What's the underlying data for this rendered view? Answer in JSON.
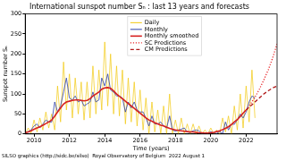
{
  "chart_data": {
    "type": "line",
    "title": "International sunspot number Sₙ : last 13 years and forecasts",
    "x_label": "Time (years)",
    "y_label": "Sunspot number Sₙ",
    "annotation": "SILSO graphics (http://sidc.be/silso)  Royal Observatory of Belgium  2022 August 1",
    "x": [
      2009.5,
      2009.67,
      2009.83,
      2010.0,
      2010.17,
      2010.33,
      2010.5,
      2010.67,
      2010.83,
      2011.0,
      2011.17,
      2011.33,
      2011.5,
      2011.67,
      2011.83,
      2012.0,
      2012.17,
      2012.33,
      2012.5,
      2012.67,
      2012.83,
      2013.0,
      2013.17,
      2013.33,
      2013.5,
      2013.67,
      2013.83,
      2014.0,
      2014.17,
      2014.33,
      2014.5,
      2014.67,
      2014.83,
      2015.0,
      2015.17,
      2015.33,
      2015.5,
      2015.67,
      2015.83,
      2016.0,
      2016.17,
      2016.33,
      2016.5,
      2016.67,
      2016.83,
      2017.0,
      2017.17,
      2017.33,
      2017.5,
      2017.67,
      2017.83,
      2018.0,
      2018.17,
      2018.33,
      2018.5,
      2018.67,
      2018.83,
      2019.0,
      2019.17,
      2019.33,
      2019.5,
      2019.67,
      2019.83,
      2020.0,
      2020.17,
      2020.33,
      2020.5,
      2020.67,
      2020.83,
      2021.0,
      2021.17,
      2021.33,
      2021.5,
      2021.67,
      2021.83,
      2022.0,
      2022.17,
      2022.33,
      2022.5
    ],
    "series": [
      {
        "name": "Daily",
        "color": "#f2c80f",
        "line_style": "solid",
        "values": [
          0,
          15,
          2,
          35,
          5,
          40,
          10,
          55,
          15,
          50,
          10,
          120,
          30,
          180,
          60,
          150,
          40,
          140,
          50,
          130,
          35,
          130,
          40,
          170,
          50,
          160,
          60,
          230,
          70,
          200,
          50,
          170,
          45,
          160,
          25,
          140,
          30,
          130,
          20,
          110,
          10,
          90,
          0,
          80,
          5,
          60,
          0,
          70,
          0,
          100,
          0,
          35,
          0,
          40,
          0,
          25,
          0,
          25,
          0,
          20,
          0,
          10,
          0,
          15,
          0,
          10,
          0,
          40,
          5,
          45,
          0,
          70,
          10,
          100,
          15,
          120,
          30,
          160,
          40
        ]
      },
      {
        "name": "Monthly",
        "color": "#2c3fa8",
        "line_style": "solid",
        "values": [
          4,
          6,
          10,
          20,
          25,
          15,
          25,
          35,
          30,
          30,
          80,
          55,
          70,
          105,
          140,
          90,
          85,
          95,
          80,
          85,
          70,
          75,
          80,
          105,
          80,
          85,
          140,
          120,
          150,
          110,
          105,
          95,
          95,
          90,
          55,
          80,
          65,
          80,
          60,
          55,
          55,
          40,
          20,
          45,
          25,
          25,
          30,
          20,
          15,
          45,
          10,
          7,
          10,
          12,
          15,
          5,
          4,
          8,
          10,
          8,
          1,
          1,
          2,
          6,
          2,
          1,
          6,
          1,
          30,
          10,
          25,
          24,
          35,
          50,
          40,
          55,
          80,
          95,
          90
        ]
      },
      {
        "name": "Monthly smoothed",
        "color": "#d62020",
        "line_style": "solid",
        "values": [
          3,
          5,
          8,
          12,
          15,
          18,
          22,
          26,
          30,
          35,
          45,
          55,
          65,
          75,
          80,
          82,
          84,
          85,
          85,
          84,
          83,
          84,
          88,
          95,
          100,
          105,
          112,
          115,
          116,
          114,
          108,
          100,
          94,
          88,
          82,
          76,
          70,
          64,
          58,
          52,
          46,
          40,
          35,
          32,
          28,
          25,
          22,
          20,
          17,
          14,
          12,
          10,
          9,
          8,
          7,
          6,
          5,
          5,
          4,
          3,
          3,
          2,
          2,
          3,
          4,
          6,
          8,
          11,
          14,
          18,
          24,
          30,
          36,
          44,
          52,
          60,
          null,
          null,
          null
        ]
      },
      {
        "name": "SC Predictions",
        "color": "#e8282b",
        "line_style": "dotted",
        "x": [
          2022.0,
          2022.25,
          2022.5,
          2022.75,
          2023.0,
          2023.25,
          2023.5,
          2023.75
        ],
        "values": [
          60,
          75,
          92,
          112,
          135,
          160,
          190,
          225
        ]
      },
      {
        "name": "CM Predictions",
        "color": "#b01818",
        "line_style": "dashed",
        "x": [
          2022.0,
          2022.25,
          2022.5,
          2022.75,
          2023.0,
          2023.25,
          2023.5,
          2023.75
        ],
        "values": [
          60,
          70,
          80,
          90,
          100,
          108,
          115,
          120
        ]
      }
    ],
    "xlim": [
      2009.5,
      2023.75
    ],
    "xticks": [
      2010,
      2012,
      2014,
      2016,
      2018,
      2020,
      2022
    ],
    "ylim": [
      0,
      300
    ],
    "yticks": [
      0,
      50,
      100,
      150,
      200,
      250,
      300
    ],
    "grid": false,
    "legend": "upper center"
  }
}
